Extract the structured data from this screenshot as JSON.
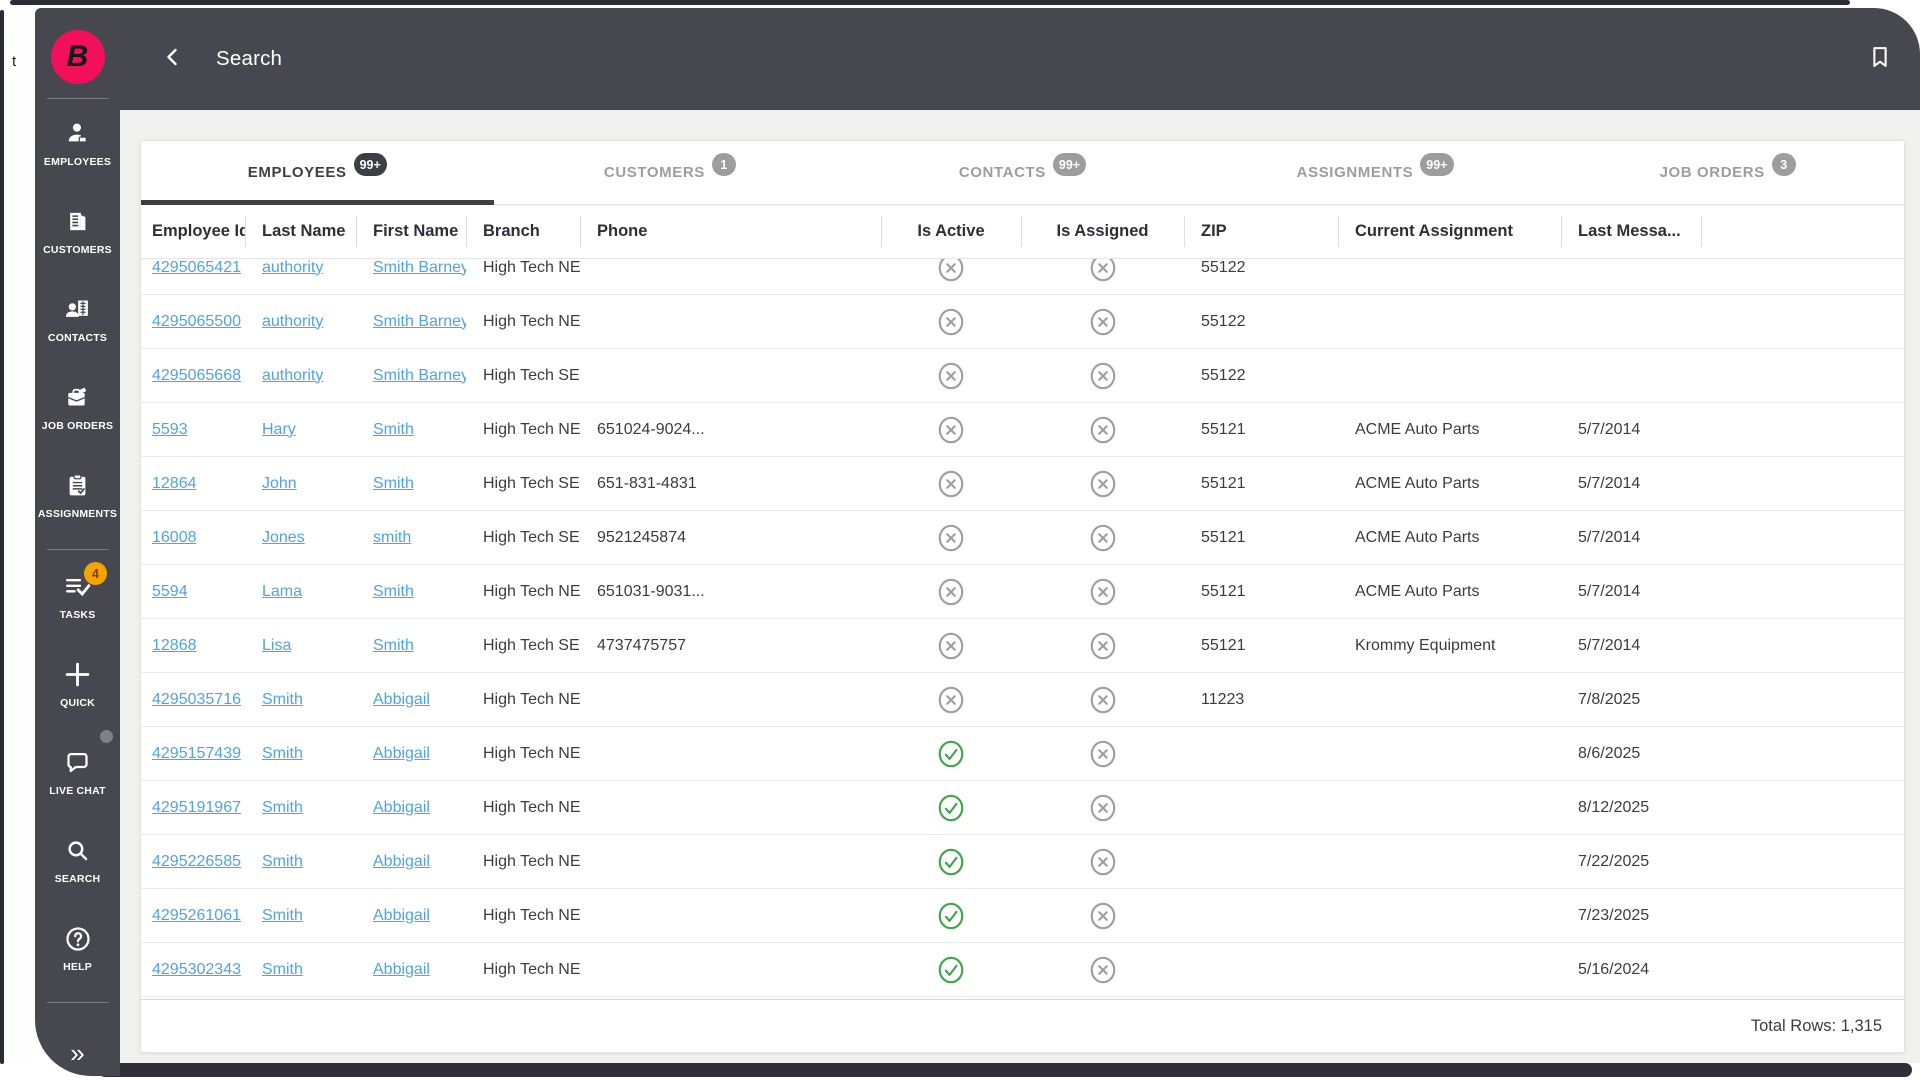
{
  "window": {
    "background_letter": "t"
  },
  "logo": {
    "letter": "B"
  },
  "topbar": {
    "title": "Search"
  },
  "sidebar": {
    "items": [
      {
        "id": "employees",
        "label": "EMPLOYEES",
        "icon": "employees-person-icon"
      },
      {
        "id": "customers",
        "label": "CUSTOMERS",
        "icon": "customers-building-icon"
      },
      {
        "id": "contacts",
        "label": "CONTACTS",
        "icon": "contacts-person-building-icon"
      },
      {
        "id": "job-orders",
        "label": "JOB ORDERS",
        "icon": "job-orders-briefcase-icon"
      },
      {
        "id": "assignments",
        "label": "ASSIGNMENTS",
        "icon": "assignments-clipboard-icon",
        "divider_after": true
      },
      {
        "id": "tasks",
        "label": "TASKS",
        "icon": "tasks-checklist-icon",
        "badge": "4"
      },
      {
        "id": "quick",
        "label": "QUICK",
        "icon": "quick-plus-icon"
      },
      {
        "id": "live-chat",
        "label": "LIVE CHAT",
        "icon": "live-chat-bubble-icon",
        "notification_dot": true
      },
      {
        "id": "search",
        "label": "SEARCH",
        "icon": "search-icon"
      },
      {
        "id": "help",
        "label": "HELP",
        "icon": "help-question-icon",
        "divider_after": true
      }
    ],
    "collapse_glyph": "»"
  },
  "tabs": [
    {
      "id": "employees",
      "label": "EMPLOYEES",
      "badge": "99+",
      "active": true
    },
    {
      "id": "customers",
      "label": "CUSTOMERS",
      "badge": "1",
      "active": false
    },
    {
      "id": "contacts",
      "label": "CONTACTS",
      "badge": "99+",
      "active": false
    },
    {
      "id": "assignments",
      "label": "ASSIGNMENTS",
      "badge": "99+",
      "active": false
    },
    {
      "id": "job-orders",
      "label": "JOB ORDERS",
      "badge": "3",
      "active": false
    }
  ],
  "table": {
    "columns": [
      {
        "key": "id",
        "label": "Employee Id"
      },
      {
        "key": "last_name",
        "label": "Last Name"
      },
      {
        "key": "first_name",
        "label": "First Name"
      },
      {
        "key": "branch",
        "label": "Branch"
      },
      {
        "key": "phone",
        "label": "Phone"
      },
      {
        "key": "is_active",
        "label": "Is Active"
      },
      {
        "key": "is_assigned",
        "label": "Is Assigned"
      },
      {
        "key": "zip",
        "label": "ZIP"
      },
      {
        "key": "current_assignment",
        "label": "Current Assignment"
      },
      {
        "key": "last_message",
        "label": "Last Messa..."
      }
    ],
    "rows": [
      {
        "id": "4295065421",
        "last_name": "authority",
        "first_name": "Smith Barney",
        "branch": "High Tech NE",
        "phone": "",
        "is_active": false,
        "is_assigned": false,
        "zip": "55122",
        "current_assignment": "",
        "last_message": ""
      },
      {
        "id": "4295065500",
        "last_name": "authority",
        "first_name": "Smith Barney",
        "branch": "High Tech NE",
        "phone": "",
        "is_active": false,
        "is_assigned": false,
        "zip": "55122",
        "current_assignment": "",
        "last_message": ""
      },
      {
        "id": "4295065668",
        "last_name": "authority",
        "first_name": "Smith Barney",
        "branch": "High Tech SE",
        "phone": "",
        "is_active": false,
        "is_assigned": false,
        "zip": "55122",
        "current_assignment": "",
        "last_message": ""
      },
      {
        "id": "5593",
        "last_name": "Hary",
        "first_name": "Smith",
        "branch": "High Tech NE",
        "phone": "651024-9024...",
        "is_active": false,
        "is_assigned": false,
        "zip": "55121",
        "current_assignment": "ACME Auto Parts",
        "last_message": "5/7/2014"
      },
      {
        "id": "12864",
        "last_name": "John",
        "first_name": "Smith",
        "branch": "High Tech SE",
        "phone": "651-831-4831",
        "is_active": false,
        "is_assigned": false,
        "zip": "55121",
        "current_assignment": "ACME Auto Parts",
        "last_message": "5/7/2014"
      },
      {
        "id": "16008",
        "last_name": "Jones",
        "first_name": "smith",
        "branch": "High Tech SE",
        "phone": "9521245874",
        "is_active": false,
        "is_assigned": false,
        "zip": "55121",
        "current_assignment": "ACME Auto Parts",
        "last_message": "5/7/2014"
      },
      {
        "id": "5594",
        "last_name": "Lama",
        "first_name": "Smith",
        "branch": "High Tech NE",
        "phone": "651031-9031...",
        "is_active": false,
        "is_assigned": false,
        "zip": "55121",
        "current_assignment": "ACME Auto Parts",
        "last_message": "5/7/2014"
      },
      {
        "id": "12868",
        "last_name": "Lisa",
        "first_name": "Smith",
        "branch": "High Tech SE",
        "phone": "4737475757",
        "is_active": false,
        "is_assigned": false,
        "zip": "55121",
        "current_assignment": "Krommy Equipment",
        "last_message": "5/7/2014"
      },
      {
        "id": "4295035716",
        "last_name": "Smith",
        "first_name": "Abbigail",
        "branch": "High Tech NE",
        "phone": "",
        "is_active": false,
        "is_assigned": false,
        "zip": "11223",
        "current_assignment": "",
        "last_message": "7/8/2025"
      },
      {
        "id": "4295157439",
        "last_name": "Smith",
        "first_name": "Abbigail",
        "branch": "High Tech NE",
        "phone": "",
        "is_active": true,
        "is_assigned": false,
        "zip": "",
        "current_assignment": "",
        "last_message": "8/6/2025"
      },
      {
        "id": "4295191967",
        "last_name": "Smith",
        "first_name": "Abbigail",
        "branch": "High Tech NE",
        "phone": "",
        "is_active": true,
        "is_assigned": false,
        "zip": "",
        "current_assignment": "",
        "last_message": "8/12/2025"
      },
      {
        "id": "4295226585",
        "last_name": "Smith",
        "first_name": "Abbigail",
        "branch": "High Tech NE",
        "phone": "",
        "is_active": true,
        "is_assigned": false,
        "zip": "",
        "current_assignment": "",
        "last_message": "7/22/2025"
      },
      {
        "id": "4295261061",
        "last_name": "Smith",
        "first_name": "Abbigail",
        "branch": "High Tech NE",
        "phone": "",
        "is_active": true,
        "is_assigned": false,
        "zip": "",
        "current_assignment": "",
        "last_message": "7/23/2025"
      },
      {
        "id": "4295302343",
        "last_name": "Smith",
        "first_name": "Abbigail",
        "branch": "High Tech NE",
        "phone": "",
        "is_active": true,
        "is_assigned": false,
        "zip": "",
        "current_assignment": "",
        "last_message": "5/16/2024"
      }
    ],
    "footer": {
      "total_rows_label": "Total Rows: 1,315"
    }
  },
  "status_icons": {
    "true_icon": "check-circle-icon",
    "false_icon": "x-circle-icon"
  },
  "colors": {
    "brand_pink": "#f2105a",
    "chrome_dark": "#46474f",
    "accent_dark": "#3d3e46",
    "link_blue": "#4fa3e8",
    "success_green": "#3fa54a",
    "inactive_gray": "#9e9fa3",
    "badge_orange": "#f5a300",
    "content_bg": "#f0f0ee"
  }
}
